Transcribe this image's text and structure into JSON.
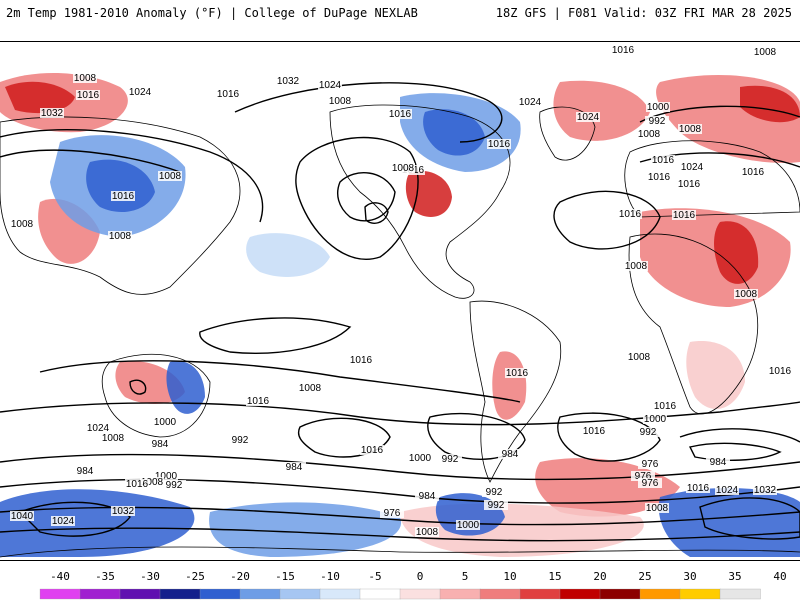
{
  "header": {
    "left_title": "2m Temp 1981-2010 Anomaly (°F) | College of DuPage NEXLAB",
    "right_title": "18Z GFS | F081 Valid: 03Z FRI MAR 28 2025"
  },
  "map": {
    "contour_labels": [
      "1024",
      "1008",
      "1016",
      "1024",
      "1032",
      "1016",
      "1008",
      "1032",
      "1024",
      "1016",
      "1008",
      "1016",
      "1016",
      "1008",
      "1016",
      "1008",
      "1024",
      "1016",
      "1024",
      "1016",
      "1000",
      "992",
      "1008",
      "1016",
      "1024",
      "1016",
      "1016",
      "1008",
      "1008",
      "1008",
      "1008",
      "1016",
      "1016",
      "1008",
      "1016",
      "1016",
      "1008",
      "1016",
      "1000",
      "992",
      "1024",
      "1008",
      "1000",
      "984",
      "992",
      "1016",
      "1000",
      "992",
      "1016",
      "984",
      "1016",
      "976",
      "984",
      "1000",
      "992",
      "1008",
      "1016",
      "1032",
      "1040",
      "1024",
      "984",
      "992",
      "976",
      "984",
      "992",
      "976",
      "1000",
      "1008",
      "976",
      "1008",
      "984",
      "1016",
      "1024",
      "1032",
      "1016",
      "1008"
    ],
    "colors": {
      "warm_light": "#f8c8c8",
      "warm_mid": "#ef7d7d",
      "warm_strong": "#d01c1c",
      "warm_dark": "#8c0000",
      "cool_light": "#c6dcf7",
      "cool_mid": "#6e9de6",
      "cool_strong": "#2f5fd0",
      "cool_dark": "#14208c",
      "contour": "#000000",
      "coastline": "#000000"
    }
  },
  "colorbar": {
    "ticks": [
      "-40",
      "-35",
      "-30",
      "-25",
      "-20",
      "-15",
      "-10",
      "-5",
      "0",
      "5",
      "10",
      "15",
      "20",
      "25",
      "30",
      "35",
      "40"
    ],
    "colors": [
      "#e040f0",
      "#a020d0",
      "#6010b0",
      "#14208c",
      "#2f5fd0",
      "#6e9de6",
      "#a6c6f2",
      "#d8e8fa",
      "#ffffff",
      "#fbe0e0",
      "#f8b0b0",
      "#ef7d7d",
      "#e04040",
      "#c00000",
      "#8c0000",
      "#ff9900",
      "#ffcc00",
      "#e6e6e6"
    ]
  }
}
